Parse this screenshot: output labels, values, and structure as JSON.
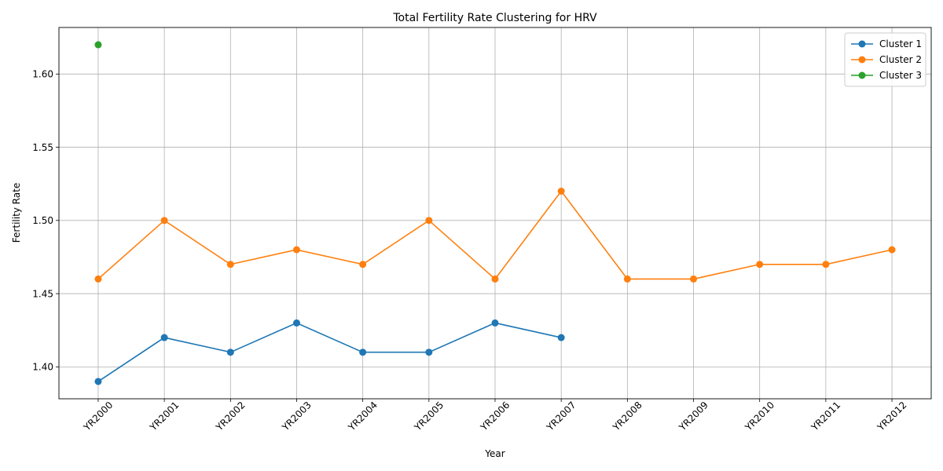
{
  "chart_data": {
    "type": "line",
    "title": "Total Fertility Rate Clustering for HRV",
    "xlabel": "Year",
    "ylabel": "Fertility Rate",
    "categories": [
      "YR2000",
      "YR2001",
      "YR2002",
      "YR2003",
      "YR2004",
      "YR2005",
      "YR2006",
      "YR2007",
      "YR2008",
      "YR2009",
      "YR2010",
      "YR2011",
      "YR2012"
    ],
    "ylim": [
      1.3782,
      1.6318
    ],
    "yticks": [
      "1.40",
      "1.45",
      "1.50",
      "1.55",
      "1.60"
    ],
    "grid": true,
    "legend_position": "top-right",
    "series": [
      {
        "name": "Cluster 1",
        "color": "#1f77b4",
        "values": [
          1.39,
          1.42,
          1.41,
          1.43,
          1.41,
          1.41,
          1.43,
          1.42,
          null,
          null,
          null,
          null,
          null
        ]
      },
      {
        "name": "Cluster 2",
        "color": "#ff7f0e",
        "values": [
          1.46,
          1.5,
          1.47,
          1.48,
          1.47,
          1.5,
          1.46,
          1.52,
          1.46,
          1.46,
          1.47,
          1.47,
          1.48
        ]
      },
      {
        "name": "Cluster 3",
        "color": "#2ca02c",
        "values": [
          1.62,
          null,
          null,
          null,
          null,
          null,
          null,
          null,
          null,
          null,
          null,
          null,
          null
        ]
      }
    ]
  }
}
